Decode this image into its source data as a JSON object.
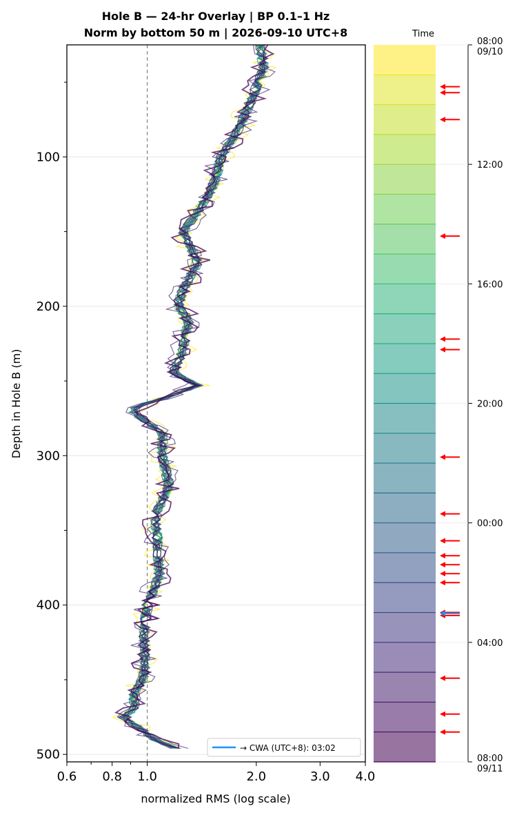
{
  "chart_data": {
    "type": "line",
    "title": "Hole B — 24-hr Overlay  |  BP 0.1–1 Hz",
    "subtitle": "Norm by bottom 50 m  |  2026-09-10 UTC+8",
    "xlabel": "normalized RMS  (log scale)",
    "ylabel": "Depth in Hole B (m)",
    "x_scale": "log",
    "xlim": [
      0.6,
      4.0
    ],
    "ylim": [
      505,
      25
    ],
    "x_ticks": [
      "0.6",
      "0.8",
      "1.0",
      "2.0",
      "3.0",
      "4.0"
    ],
    "y_ticks": [
      "100",
      "200",
      "300",
      "400",
      "500"
    ],
    "grid": true,
    "reference_line_x": 1.0,
    "colorbar": {
      "label": "Time",
      "bands": 24,
      "ticks": [
        {
          "label": "08:00",
          "label2": "09/10"
        },
        {
          "label": "12:00",
          "label2": ""
        },
        {
          "label": "16:00",
          "label2": ""
        },
        {
          "label": "20:00",
          "label2": ""
        },
        {
          "label": "00:00",
          "label2": ""
        },
        {
          "label": "04:00",
          "label2": ""
        },
        {
          "label": "08:00",
          "label2": "09/11"
        }
      ],
      "red_arrow_hours": [
        1.4,
        1.6,
        2.5,
        6.4,
        9.85,
        10.2,
        13.8,
        15.7,
        16.6,
        17.1,
        17.4,
        17.7,
        18.0,
        19.0,
        19.1,
        21.2,
        22.4,
        23.0
      ],
      "blue_arrow_hour": 19.03
    },
    "legend": {
      "position": "bottom-right",
      "entries": [
        "→ CWA (UTC+8): 03:02"
      ]
    },
    "mean_profile": {
      "depth": [
        25,
        40,
        60,
        80,
        100,
        120,
        140,
        150,
        170,
        190,
        200,
        210,
        230,
        245,
        253,
        262,
        267,
        272,
        285,
        300,
        320,
        340,
        360,
        380,
        400,
        410,
        420,
        440,
        450,
        460,
        470,
        475,
        480,
        490,
        496
      ],
      "rms": [
        2.05,
        2.1,
        1.95,
        1.8,
        1.6,
        1.52,
        1.35,
        1.25,
        1.38,
        1.25,
        1.22,
        1.3,
        1.25,
        1.18,
        1.38,
        1.1,
        0.93,
        0.92,
        1.1,
        1.1,
        1.15,
        1.05,
        1.07,
        1.08,
        1.0,
        0.99,
        0.98,
        0.99,
        0.97,
        0.92,
        0.92,
        0.86,
        0.92,
        1.05,
        1.2
      ]
    },
    "series_count": 24
  },
  "colors": {
    "red_arrow": "#ff0000",
    "blue_arrow": "#1e90ff",
    "ref_line": "#808080"
  }
}
